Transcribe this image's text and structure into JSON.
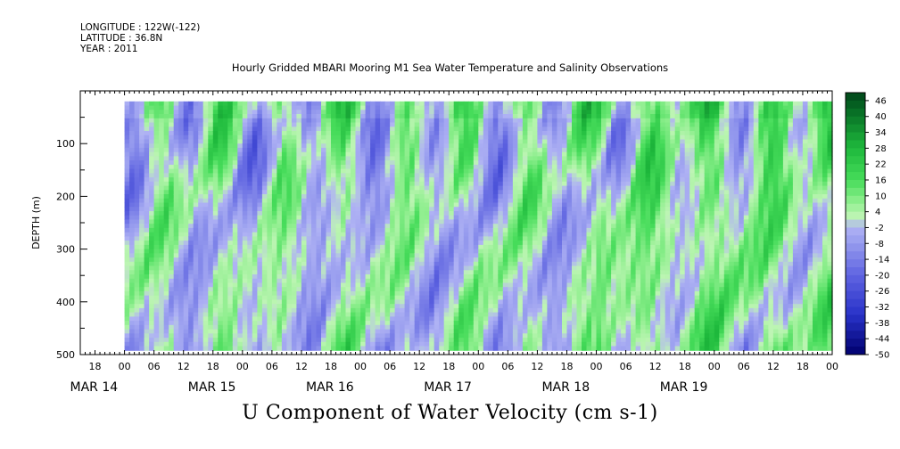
{
  "header": {
    "longitude": "LONGITUDE : 122W(-122)",
    "latitude": "LATITUDE : 36.8N",
    "year": "YEAR : 2011"
  },
  "chart_data": {
    "type": "heatmap",
    "title": "Hourly Gridded MBARI Mooring M1 Sea Water Temperature and Salinity Observations",
    "bottom_title": "U Component of Water Velocity (cm s-1)",
    "ylabel": "DEPTH (m)",
    "ylim": [
      500,
      0
    ],
    "y_ticks": [
      "100",
      "200",
      "300",
      "400",
      "500"
    ],
    "y_tick_values": [
      100,
      200,
      300,
      400,
      500
    ],
    "x_hour_ticks": [
      "18",
      "00",
      "06",
      "12",
      "18",
      "00",
      "06",
      "12",
      "18",
      "00",
      "06",
      "12",
      "18",
      "00",
      "06",
      "12",
      "18",
      "00",
      "06",
      "12",
      "18",
      "00",
      "06",
      "12",
      "18",
      "00"
    ],
    "x_day_labels": [
      "MAR 14",
      "MAR 15",
      "MAR 16",
      "MAR 17",
      "MAR 18",
      "MAR 19"
    ],
    "x_range_hours": [
      -9,
      144
    ],
    "data_depth_range_m": [
      20,
      488
    ],
    "data_time_range_hours": [
      0,
      144
    ],
    "colorbar": {
      "labels": [
        "46",
        "40",
        "34",
        "28",
        "22",
        "16",
        "10",
        "4",
        "-2",
        "-8",
        "-14",
        "-20",
        "-26",
        "-32",
        "-38",
        "-44",
        "-50"
      ],
      "min": -50,
      "max": 49,
      "step": 3
    },
    "palette": {
      "dark_green": "#004d1a",
      "green": "#2fd24a",
      "light_green": "#a8f0a0",
      "light_blue": "#a9acf2",
      "blue": "#7a80e8",
      "dark_blue": "#00006e"
    }
  }
}
